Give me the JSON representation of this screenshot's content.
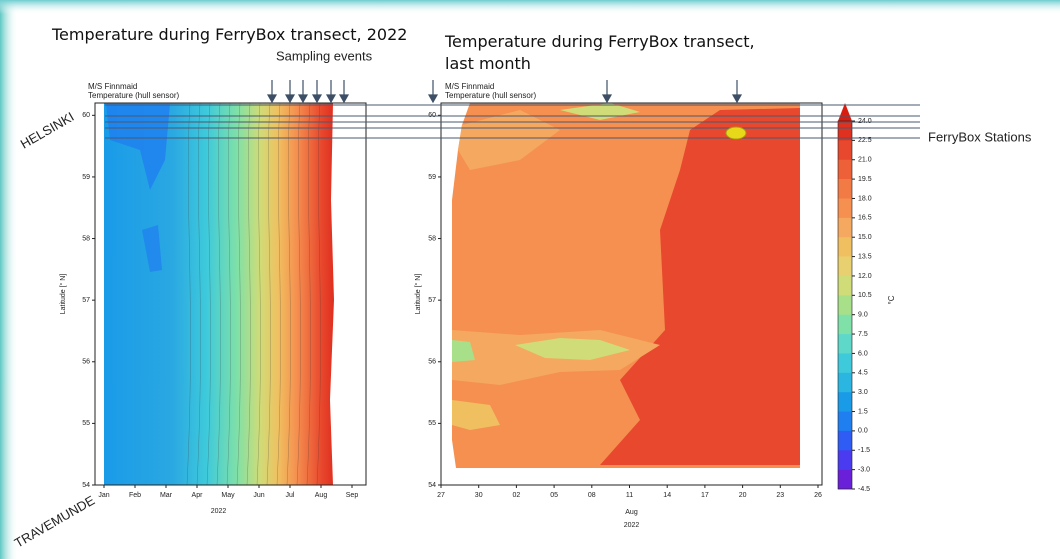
{
  "annotations": {
    "sampling_events": "Sampling events",
    "stations": "FerryBox Stations",
    "north_port": "HELSINKI",
    "south_port": "TRAVEMUNDE"
  },
  "chart_data": [
    {
      "type": "contour",
      "title": "Temperature during FerryBox transect, 2022",
      "subtitle": [
        "M/S Finnmaid",
        "Temperature (hull sensor)"
      ],
      "categories": [
        "Jan",
        "Feb",
        "Mar",
        "Apr",
        "May",
        "Jun",
        "Jul",
        "Aug",
        "Sep"
      ],
      "xlabel": "2022",
      "ylabel": "Latitude [° N]",
      "ylim": [
        54,
        60.2
      ],
      "yticks": [
        54,
        55,
        56,
        57,
        58,
        59,
        60
      ]
    },
    {
      "type": "contour",
      "title": "Temperature during FerryBox transect, last month",
      "subtitle": [
        "M/S Finnmaid",
        "Temperature (hull sensor)"
      ],
      "categories": [
        "27",
        "30",
        "02",
        "05",
        "08",
        "11",
        "14",
        "17",
        "20",
        "23",
        "26"
      ],
      "x_sublabel": "Aug",
      "xlabel": "2022",
      "ylabel": "Latitude [° N]",
      "ylim": [
        54,
        60.2
      ],
      "yticks": [
        54,
        55,
        56,
        57,
        58,
        59,
        60
      ],
      "colorbar": {
        "label": "°C",
        "ticks": [
          {
            "value": 24,
            "label": "24.0"
          },
          22.5,
          {
            "value": 21,
            "label": "21.0"
          },
          19.5,
          {
            "value": 18,
            "label": "18.0"
          },
          16.5,
          {
            "value": 15,
            "label": "15.0"
          },
          13.5,
          {
            "value": 12,
            "label": "12.0"
          },
          10.5,
          {
            "value": 9,
            "label": "9.0"
          },
          7.5,
          {
            "value": 6,
            "label": "6.0"
          },
          4.5,
          {
            "value": 3,
            "label": "3.0"
          },
          1.5,
          {
            "value": 0,
            "label": "0.0"
          },
          -1.5,
          {
            "value": -3,
            "label": "-3.0"
          },
          -4.5
        ],
        "colors": [
          "#e03020",
          "#e8482d",
          "#ee6038",
          "#f27a45",
          "#f59050",
          "#f5a860",
          "#f0c060",
          "#e8d070",
          "#cfdc78",
          "#a8e08a",
          "#7fe0a8",
          "#5ed8c8",
          "#3fcadb",
          "#2ab6e0",
          "#1a9be8",
          "#1f7ff0",
          "#2f5cf5",
          "#4a3bf0",
          "#6a1fd8"
        ],
        "extend_color": "#d81e10"
      }
    }
  ]
}
